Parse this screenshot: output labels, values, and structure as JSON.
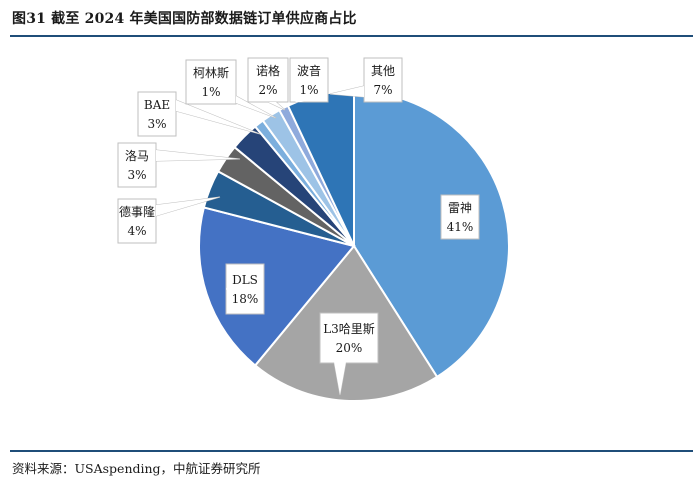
{
  "title": "图31  截至 2024 年美国国防部数据链订单供应商占比",
  "source": "资料来源：USAspending，中航证券研究所",
  "chart_data": {
    "type": "pie",
    "title": "",
    "unit": "%",
    "slices": [
      {
        "name": "雷神",
        "value": 41,
        "label": "41%",
        "color": "#5b9bd5"
      },
      {
        "name": "L3哈里斯",
        "value": 20,
        "label": "20%",
        "color": "#a5a5a5"
      },
      {
        "name": "DLS",
        "value": 18,
        "label": "18%",
        "color": "#4472c4"
      },
      {
        "name": "德事隆",
        "value": 4,
        "label": "4%",
        "color": "#255e91"
      },
      {
        "name": "洛马",
        "value": 3,
        "label": "3%",
        "color": "#636363"
      },
      {
        "name": "BAE",
        "value": 3,
        "label": "3%",
        "color": "#264478"
      },
      {
        "name": "柯林斯",
        "value": 1,
        "label": "1%",
        "color": "#7cafdd"
      },
      {
        "name": "诺格",
        "value": 2,
        "label": "2%",
        "color": "#9dc3e6"
      },
      {
        "name": "波音",
        "value": 1,
        "label": "1%",
        "color": "#8faadc"
      },
      {
        "name": "其他",
        "value": 7,
        "label": "7%",
        "color": "#2e75b6"
      }
    ]
  }
}
